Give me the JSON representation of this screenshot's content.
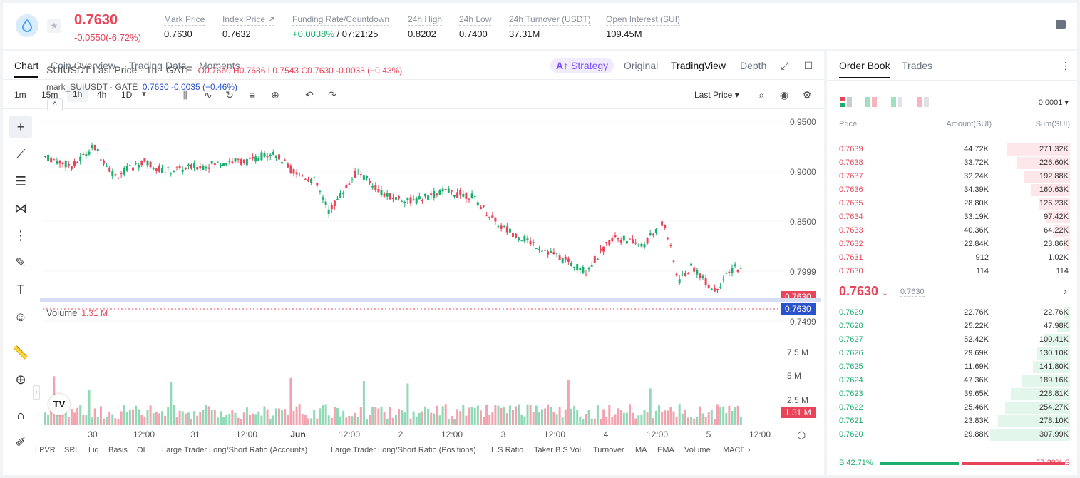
{
  "header": {
    "last_price": "0.7630",
    "change": "-0.0550(-6.72%)",
    "stats": [
      {
        "label": "Mark Price",
        "value": "0.7630"
      },
      {
        "label": "Index Price ↗",
        "value": "0.7632"
      },
      {
        "label": "Funding Rate/Countdown",
        "value_green": "+0.0038%",
        "value": " / 07:21:25"
      },
      {
        "label": "24h High",
        "value": "0.8202"
      },
      {
        "label": "24h Low",
        "value": "0.7400"
      },
      {
        "label": "24h Turnover (USDT)",
        "value": "37.31M"
      },
      {
        "label": "Open Interest (SUI)",
        "value": "109.45M"
      }
    ]
  },
  "chart_tabs": [
    "Chart",
    "Coin Overview",
    "Trading Data",
    "Moments"
  ],
  "view_tabs": {
    "strategy": "Strategy",
    "original": "Original",
    "tradingview": "TradingView",
    "depth": "Depth"
  },
  "timeframes": [
    "1m",
    "15m",
    "1h",
    "4h",
    "1D"
  ],
  "toolbar": {
    "price_type": "Last Price ▾"
  },
  "legend": {
    "symbol": "SUIUSDT Last Price · 1h · GATE",
    "ohlc": "O0.7660 H0.7686 L0.7543 C0.7630 -0.0033 (−0.43%)",
    "mark_name": "mark_SUIUSDT · GATE",
    "mark_vals": "0.7630  -0.0035 (−0.46%)"
  },
  "price_axis": [
    "0.9500",
    "0.9000",
    "0.8500",
    "0.7999",
    "0.7499"
  ],
  "price_tags": {
    "last": "0.7630",
    "mark": "0.7630"
  },
  "volume": {
    "label": "Volume",
    "value": "1.31 M",
    "axis": [
      "7.5 M",
      "5 M",
      "2.5 M"
    ],
    "tag": "1.31 M"
  },
  "time_axis": [
    "30",
    "12:00",
    "31",
    "12:00",
    "Jun",
    "12:00",
    "2",
    "12:00",
    "3",
    "12:00",
    "4",
    "12:00",
    "5",
    "12:00"
  ],
  "indicators": [
    "LPVR",
    "SRL",
    "Liq",
    "Basis",
    "OI",
    "Large Trader Long/Short Ratio (Accounts)",
    "Large Trader Long/Short Ratio (Positions)",
    "L.S Ratio",
    "Taker B.S Vol.",
    "Turnover",
    "MA",
    "EMA",
    "Volume",
    "MACD"
  ],
  "colors": {
    "up": "#1aae6f",
    "down": "#e8455a",
    "accent": "#7b4dff",
    "mark": "#2952cc"
  },
  "orderbook": {
    "tabs": [
      "Order Book",
      "Trades"
    ],
    "precision": "0.0001 ▾",
    "headers": [
      "Price",
      "Amount(SUI)",
      "Sum(SUI)"
    ],
    "asks": [
      {
        "price": "0.7639",
        "amount": "44.72K",
        "sum": "271.32K",
        "depth": 0.34
      },
      {
        "price": "0.7638",
        "amount": "33.72K",
        "sum": "226.60K",
        "depth": 0.29
      },
      {
        "price": "0.7637",
        "amount": "32.24K",
        "sum": "192.88K",
        "depth": 0.25
      },
      {
        "price": "0.7636",
        "amount": "34.39K",
        "sum": "160.63K",
        "depth": 0.21
      },
      {
        "price": "0.7635",
        "amount": "28.80K",
        "sum": "126.23K",
        "depth": 0.17
      },
      {
        "price": "0.7634",
        "amount": "33.19K",
        "sum": "97.42K",
        "depth": 0.13
      },
      {
        "price": "0.7633",
        "amount": "40.36K",
        "sum": "64.22K",
        "depth": 0.09
      },
      {
        "price": "0.7632",
        "amount": "22.84K",
        "sum": "23.86K",
        "depth": 0.035
      },
      {
        "price": "0.7631",
        "amount": "912",
        "sum": "1.02K",
        "depth": 0
      },
      {
        "price": "0.7630",
        "amount": "114",
        "sum": "114",
        "depth": 0
      }
    ],
    "mid": {
      "price": "0.7630 ↓",
      "mark": "0.7630"
    },
    "bids": [
      {
        "price": "0.7629",
        "amount": "22.76K",
        "sum": "22.76K",
        "depth": 0.03
      },
      {
        "price": "0.7628",
        "amount": "25.22K",
        "sum": "47.98K",
        "depth": 0.07
      },
      {
        "price": "0.7627",
        "amount": "52.42K",
        "sum": "100.41K",
        "depth": 0.14
      },
      {
        "price": "0.7626",
        "amount": "29.69K",
        "sum": "130.10K",
        "depth": 0.18
      },
      {
        "price": "0.7625",
        "amount": "11.69K",
        "sum": "141.80K",
        "depth": 0.2
      },
      {
        "price": "0.7624",
        "amount": "47.36K",
        "sum": "189.16K",
        "depth": 0.26
      },
      {
        "price": "0.7623",
        "amount": "39.65K",
        "sum": "228.81K",
        "depth": 0.32
      },
      {
        "price": "0.7622",
        "amount": "25.46K",
        "sum": "254.27K",
        "depth": 0.35
      },
      {
        "price": "0.7621",
        "amount": "23.83K",
        "sum": "278.10K",
        "depth": 0.39
      },
      {
        "price": "0.7620",
        "amount": "29.88K",
        "sum": "307.99K",
        "depth": 0.43
      }
    ],
    "buy_ratio": "B 42.71%",
    "sell_ratio": "57.29% S",
    "buy_fraction": 0.4271
  }
}
